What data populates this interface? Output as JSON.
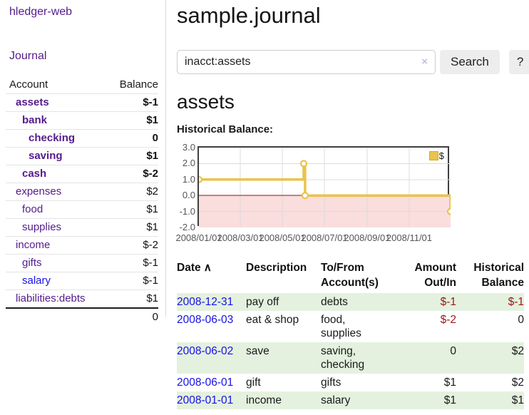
{
  "app": {
    "brand": "hledger-web",
    "nav": {
      "journal": "Journal"
    }
  },
  "sidebar": {
    "headers": {
      "account": "Account",
      "balance": "Balance"
    },
    "accounts": [
      {
        "name": "assets",
        "balance": "$-1"
      },
      {
        "name": "bank",
        "balance": "$1"
      },
      {
        "name": "checking",
        "balance": "0"
      },
      {
        "name": "saving",
        "balance": "$1"
      },
      {
        "name": "cash",
        "balance": "$-2"
      },
      {
        "name": "expenses",
        "balance": "$2"
      },
      {
        "name": "food",
        "balance": "$1"
      },
      {
        "name": "supplies",
        "balance": "$1"
      },
      {
        "name": "income",
        "balance": "$-2"
      },
      {
        "name": "gifts",
        "balance": "$-1"
      },
      {
        "name": "salary",
        "balance": "$-1"
      },
      {
        "name": "liabilities:debts",
        "balance": "$1"
      }
    ],
    "total": "0"
  },
  "main": {
    "title": "sample.journal",
    "search": {
      "query": "inacct:assets",
      "clear_icon": "×",
      "button": "Search",
      "help_button": "?"
    },
    "account_title": "assets",
    "chart_label": "Historical Balance:"
  },
  "chart_data": {
    "type": "line",
    "step": true,
    "title": "Historical Balance:",
    "legend": "$",
    "legend_position": "top-right",
    "grid": true,
    "ylim": [
      -2,
      3
    ],
    "y_ticks": [
      3.0,
      2.0,
      1.0,
      0.0,
      -1.0,
      -2.0
    ],
    "x_ticks": [
      "2008/01/01",
      "2008/03/01",
      "2008/05/01",
      "2008/07/01",
      "2008/09/01",
      "2008/11/01"
    ],
    "x_range": [
      "2008-01-01",
      "2008-12-31"
    ],
    "series": [
      {
        "name": "$",
        "points": [
          {
            "x": "2008-01-01",
            "y": 1
          },
          {
            "x": "2008-06-01",
            "y": 2
          },
          {
            "x": "2008-06-03",
            "y": 0
          },
          {
            "x": "2008-12-31",
            "y": -1
          }
        ]
      }
    ],
    "colors": {
      "line": "#e9c34c",
      "marker_fill": "#ffffff",
      "zero_line": "#8f1010",
      "negative_fill": "#fadddd",
      "grid": "#dcdcdc",
      "border": "#3f3f3f"
    }
  },
  "register": {
    "headers": {
      "date": "Date",
      "sort_arrow": "∧",
      "description": "Description",
      "accounts": "To/From Account(s)",
      "amount": "Amount Out/In",
      "balance": "Historical Balance"
    },
    "rows": [
      {
        "date": "2008-12-31",
        "description": "pay off",
        "accounts": "debts",
        "amount": "$-1",
        "balance": "$-1"
      },
      {
        "date": "2008-06-03",
        "description": "eat & shop",
        "accounts": "food, supplies",
        "amount": "$-2",
        "balance": "0"
      },
      {
        "date": "2008-06-02",
        "description": "save",
        "accounts": "saving, checking",
        "amount": "0",
        "balance": "$2"
      },
      {
        "date": "2008-06-01",
        "description": "gift",
        "accounts": "gifts",
        "amount": "$1",
        "balance": "$2"
      },
      {
        "date": "2008-01-01",
        "description": "income",
        "accounts": "salary",
        "amount": "$1",
        "balance": "$1"
      }
    ]
  }
}
